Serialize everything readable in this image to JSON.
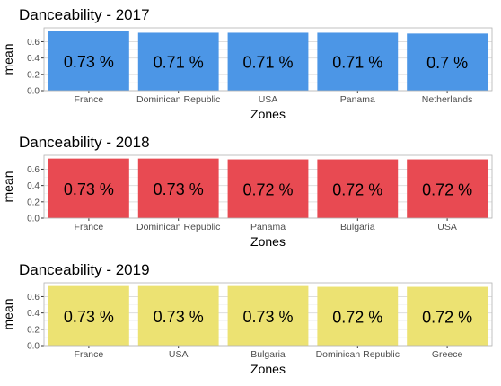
{
  "chart_data": [
    {
      "type": "bar",
      "title": "Danceability - 2017",
      "xlabel": "Zones",
      "ylabel": "mean",
      "categories": [
        "France",
        "Dominican Republic",
        "USA",
        "Panama",
        "Netherlands"
      ],
      "values": [
        0.73,
        0.71,
        0.71,
        0.71,
        0.7
      ],
      "data_labels": [
        "0.73 %",
        "0.71 %",
        "0.71 %",
        "0.71 %",
        "0.7 %"
      ],
      "ylim": [
        0,
        0.77
      ],
      "yticks": [
        0.0,
        0.2,
        0.4,
        0.6
      ],
      "ytick_labels": [
        "0.0",
        "0.2",
        "0.4",
        "0.6"
      ],
      "grid": true,
      "color": "#4c96e6"
    },
    {
      "type": "bar",
      "title": "Danceability - 2018",
      "xlabel": "Zones",
      "ylabel": "mean",
      "categories": [
        "France",
        "Dominican Republic",
        "Panama",
        "Bulgaria",
        "USA"
      ],
      "values": [
        0.73,
        0.73,
        0.72,
        0.72,
        0.72
      ],
      "data_labels": [
        "0.73 %",
        "0.73 %",
        "0.72 %",
        "0.72 %",
        "0.72 %"
      ],
      "ylim": [
        0,
        0.77
      ],
      "yticks": [
        0.0,
        0.2,
        0.4,
        0.6
      ],
      "ytick_labels": [
        "0.0",
        "0.2",
        "0.4",
        "0.6"
      ],
      "grid": true,
      "color": "#e84a52"
    },
    {
      "type": "bar",
      "title": "Danceability - 2019",
      "xlabel": "Zones",
      "ylabel": "mean",
      "categories": [
        "France",
        "USA",
        "Bulgaria",
        "Dominican Republic",
        "Greece"
      ],
      "values": [
        0.73,
        0.73,
        0.73,
        0.72,
        0.72
      ],
      "data_labels": [
        "0.73 %",
        "0.73 %",
        "0.73 %",
        "0.72 %",
        "0.72 %"
      ],
      "ylim": [
        0,
        0.77
      ],
      "yticks": [
        0.0,
        0.2,
        0.4,
        0.6
      ],
      "ytick_labels": [
        "0.0",
        "0.2",
        "0.4",
        "0.6"
      ],
      "grid": true,
      "color": "#ece272"
    }
  ]
}
